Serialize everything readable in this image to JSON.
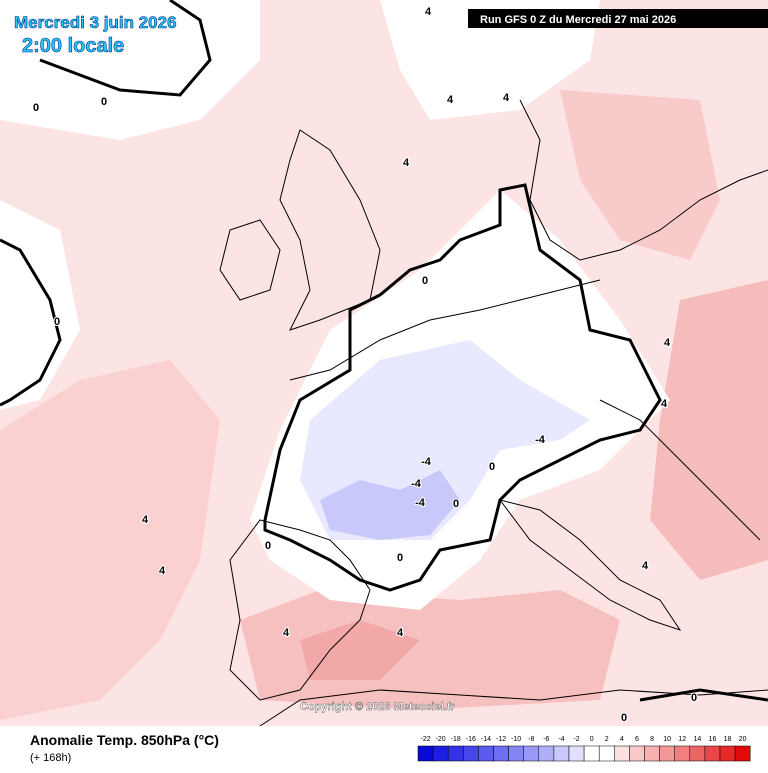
{
  "header": {
    "date": "Mercredi 3 juin 2026",
    "time": "2:00 locale",
    "run": "Run GFS 0 Z du Mercredi 27 mai 2026"
  },
  "footer": {
    "title": "Anomalie Temp. 850hPa (°C)",
    "lead": "(+ 168h)",
    "copyright": "Copyright © 2026 Meteociel.fr"
  },
  "legend": {
    "ticks": [
      -22,
      -20,
      -18,
      -16,
      -14,
      -12,
      -10,
      -8,
      -6,
      -4,
      -2,
      0,
      2,
      4,
      6,
      8,
      10,
      12,
      14,
      16,
      18,
      20
    ],
    "colors": [
      "#0a0ad8",
      "#1e1ee0",
      "#3232e6",
      "#4646ea",
      "#5a5aee",
      "#6e6ef2",
      "#8484f4",
      "#9a9af6",
      "#b0b0f8",
      "#c8c8fa",
      "#e0e0fc",
      "#ffffff",
      "#ffffff",
      "#fde0e0",
      "#fbc8c8",
      "#f8b0b0",
      "#f59898",
      "#f28080",
      "#ee6464",
      "#ea4848",
      "#e62a2a",
      "#e00a0a"
    ]
  },
  "contour_labels": [
    4,
    0,
    0,
    4,
    4,
    4,
    0,
    0,
    -4,
    -4,
    -4,
    0,
    0,
    -4,
    4,
    4,
    0,
    0,
    4,
    4,
    4,
    0,
    0,
    4,
    4
  ]
}
